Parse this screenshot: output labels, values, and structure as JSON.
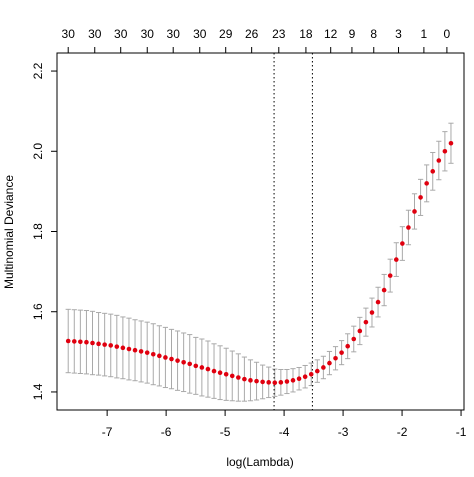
{
  "chart_data": {
    "type": "scatter",
    "xlabel": "log(Lambda)",
    "ylabel": "Multinomial Deviance",
    "xlim": [
      -7.85,
      -0.95
    ],
    "ylim": [
      1.355,
      2.245
    ],
    "x_ticks": [
      -7,
      -6,
      -5,
      -4,
      -3,
      -2,
      -1
    ],
    "y_ticks": [
      1.4,
      1.6,
      1.8,
      2.0,
      2.2
    ],
    "x_tick_labels": [
      "-7",
      "-6",
      "-5",
      "-4",
      "-3",
      "-2",
      "-1"
    ],
    "y_tick_labels": [
      "1.4",
      "1.6",
      "1.8",
      "2.0",
      "2.2"
    ],
    "top_axis": {
      "ticks": [
        -7.66,
        -7.21,
        -6.77,
        -6.32,
        -5.88,
        -5.43,
        -4.99,
        -4.55,
        -4.09,
        -3.63,
        -3.21,
        -2.85,
        -2.48,
        -2.06,
        -1.63,
        -1.24
      ],
      "labels": [
        "30",
        "30",
        "30",
        "30",
        "30",
        "30",
        "29",
        "26",
        "23",
        "18",
        "12",
        "9",
        "8",
        "3",
        "1",
        "0"
      ]
    },
    "vlines": [
      -4.17,
      -3.52
    ],
    "vline_style": "dotted",
    "point_color": "#e0000f",
    "errorbar_color": "#a9a9a9",
    "grid": false,
    "series": [
      {
        "x": [
          -7.66,
          -7.557,
          -7.454,
          -7.351,
          -7.248,
          -7.145,
          -7.042,
          -6.939,
          -6.836,
          -6.733,
          -6.63,
          -6.527,
          -6.424,
          -6.321,
          -6.218,
          -6.115,
          -6.012,
          -5.909,
          -5.806,
          -5.703,
          -5.6,
          -5.497,
          -5.394,
          -5.291,
          -5.188,
          -5.085,
          -4.982,
          -4.879,
          -4.776,
          -4.673,
          -4.57,
          -4.467,
          -4.364,
          -4.261,
          -4.158,
          -4.055,
          -3.952,
          -3.849,
          -3.746,
          -3.643,
          -3.54,
          -3.437,
          -3.334,
          -3.231,
          -3.128,
          -3.025,
          -2.922,
          -2.819,
          -2.716,
          -2.613,
          -2.51,
          -2.407,
          -2.304,
          -2.201,
          -2.098,
          -1.995,
          -1.892,
          -1.789,
          -1.686,
          -1.583,
          -1.48,
          -1.377,
          -1.274,
          -1.171
        ],
        "y": [
          1.527,
          1.526,
          1.525,
          1.524,
          1.522,
          1.52,
          1.518,
          1.516,
          1.513,
          1.51,
          1.507,
          1.504,
          1.501,
          1.498,
          1.494,
          1.49,
          1.486,
          1.482,
          1.478,
          1.474,
          1.47,
          1.465,
          1.461,
          1.457,
          1.452,
          1.448,
          1.444,
          1.44,
          1.436,
          1.432,
          1.429,
          1.427,
          1.425,
          1.424,
          1.423,
          1.424,
          1.426,
          1.429,
          1.433,
          1.438,
          1.444,
          1.452,
          1.461,
          1.472,
          1.484,
          1.498,
          1.514,
          1.532,
          1.552,
          1.574,
          1.598,
          1.624,
          1.654,
          1.69,
          1.73,
          1.77,
          1.81,
          1.85,
          1.885,
          1.92,
          1.95,
          1.977,
          2.0,
          2.02
        ],
        "ci_low": [
          1.448,
          1.447,
          1.446,
          1.445,
          1.443,
          1.442,
          1.44,
          1.438,
          1.435,
          1.433,
          1.43,
          1.428,
          1.425,
          1.422,
          1.418,
          1.415,
          1.411,
          1.408,
          1.404,
          1.401,
          1.397,
          1.394,
          1.39,
          1.387,
          1.384,
          1.381,
          1.379,
          1.378,
          1.377,
          1.377,
          1.378,
          1.38,
          1.383,
          1.386,
          1.389,
          1.392,
          1.396,
          1.4,
          1.405,
          1.41,
          1.416,
          1.424,
          1.433,
          1.443,
          1.455,
          1.468,
          1.483,
          1.5,
          1.518,
          1.539,
          1.562,
          1.587,
          1.615,
          1.649,
          1.688,
          1.728,
          1.767,
          1.806,
          1.84,
          1.874,
          1.903,
          1.929,
          1.951,
          1.97
        ],
        "ci_high": [
          1.606,
          1.605,
          1.604,
          1.603,
          1.601,
          1.598,
          1.596,
          1.594,
          1.591,
          1.587,
          1.584,
          1.58,
          1.577,
          1.574,
          1.57,
          1.565,
          1.561,
          1.556,
          1.552,
          1.547,
          1.543,
          1.536,
          1.532,
          1.527,
          1.52,
          1.515,
          1.509,
          1.502,
          1.495,
          1.487,
          1.48,
          1.474,
          1.467,
          1.462,
          1.457,
          1.456,
          1.456,
          1.458,
          1.461,
          1.466,
          1.472,
          1.48,
          1.489,
          1.501,
          1.513,
          1.528,
          1.545,
          1.564,
          1.586,
          1.609,
          1.634,
          1.661,
          1.693,
          1.731,
          1.772,
          1.812,
          1.853,
          1.894,
          1.93,
          1.966,
          1.997,
          2.025,
          2.049,
          2.07
        ]
      }
    ]
  }
}
